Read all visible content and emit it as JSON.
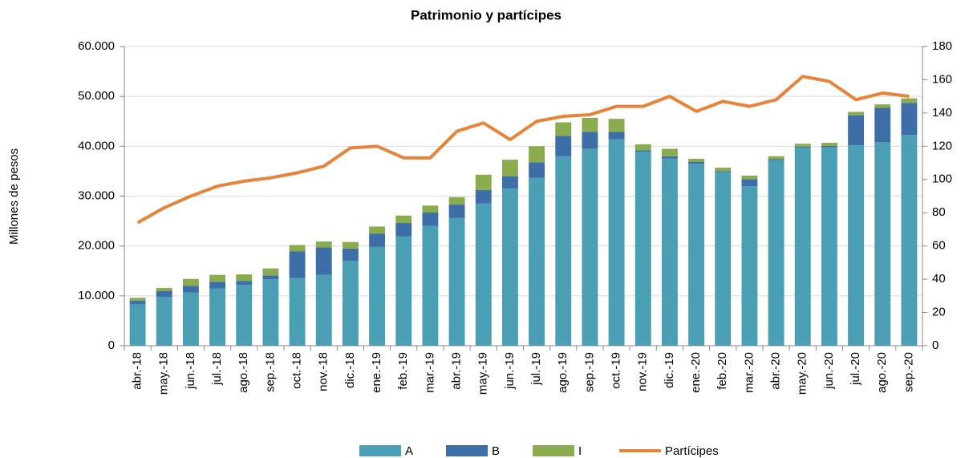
{
  "chart_data": {
    "type": "bar",
    "stacked": true,
    "title": "Patrimonio y partícipes",
    "y_label": "Millones de pesos",
    "categories": [
      "abr.-18",
      "may.-18",
      "jun.-18",
      "jul.-18",
      "ago.-18",
      "sep.-18",
      "oct.-18",
      "nov.-18",
      "dic.-18",
      "ene.-19",
      "feb.-19",
      "mar.-19",
      "abr.-19",
      "may.-19",
      "jun.-19",
      "jul.-19",
      "ago.-19",
      "sep.-19",
      "oct.-19",
      "nov.-19",
      "dic.-19",
      "ene.-20",
      "feb.-20",
      "mar.-20",
      "abr.-20",
      "may.-20",
      "jun.-20",
      "jul.-20",
      "ago.-20",
      "sep.-20"
    ],
    "series": [
      {
        "name": "A",
        "color": "#4a9fb5",
        "type": "bar",
        "values": [
          8300,
          9800,
          10700,
          11500,
          12200,
          13300,
          13600,
          14200,
          17000,
          19800,
          21900,
          24000,
          25600,
          28500,
          31500,
          33700,
          38000,
          39500,
          41400,
          38900,
          37500,
          36500,
          34800,
          32000,
          37200,
          39700,
          39800,
          40200,
          40800,
          42300
        ]
      },
      {
        "name": "B",
        "color": "#3e6ea8",
        "type": "bar",
        "values": [
          700,
          1200,
          1300,
          1300,
          800,
          800,
          5300,
          5500,
          2500,
          2700,
          2700,
          2700,
          2700,
          2700,
          2500,
          3100,
          4100,
          3400,
          1500,
          300,
          500,
          400,
          200,
          1400,
          200,
          200,
          300,
          6000,
          6900,
          6400
        ]
      },
      {
        "name": "I",
        "color": "#8aac4f",
        "type": "bar",
        "values": [
          600,
          600,
          1400,
          1400,
          1300,
          1400,
          1300,
          1200,
          1300,
          1400,
          1500,
          1400,
          1500,
          3100,
          3300,
          3200,
          2700,
          2800,
          2600,
          1200,
          1500,
          600,
          700,
          700,
          600,
          600,
          600,
          700,
          700,
          900
        ]
      },
      {
        "name": "Partícipes",
        "color": "#e5843a",
        "type": "line",
        "axis": "y2",
        "values": [
          74,
          83,
          90,
          96,
          99,
          101,
          104,
          108,
          119,
          120,
          113,
          113,
          129,
          134,
          124,
          135,
          138,
          139,
          144,
          144,
          150,
          141,
          147,
          144,
          148,
          162,
          159,
          148,
          152,
          150
        ]
      }
    ],
    "ylim": [
      0,
      60000
    ],
    "yticks": [
      0,
      {
        "value": 10000,
        "label": "10.000"
      },
      {
        "value": 20000,
        "label": "20.000"
      },
      {
        "value": 30000,
        "label": "30.000"
      },
      {
        "value": 40000,
        "label": "40.000"
      },
      {
        "value": 50000,
        "label": "50.000"
      },
      {
        "value": 60000,
        "label": "60.000"
      }
    ],
    "y2lim": [
      0,
      180
    ],
    "y2ticks": [
      0,
      20,
      40,
      60,
      80,
      100,
      120,
      140,
      160,
      180
    ],
    "grid": true,
    "legend": "bottom"
  }
}
